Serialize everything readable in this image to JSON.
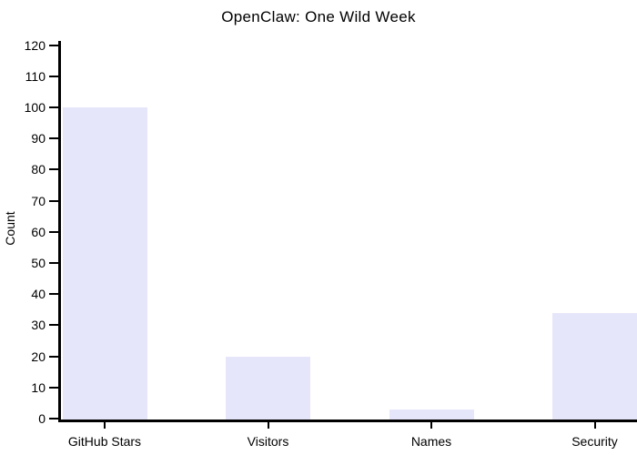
{
  "chart_data": {
    "type": "bar",
    "title": "OpenClaw: One Wild Week",
    "xlabel": "",
    "ylabel": "Count",
    "categories": [
      "GitHub Stars",
      "Visitors",
      "Names",
      "Security"
    ],
    "values": [
      100,
      20,
      3,
      34
    ],
    "ylim": [
      0,
      120
    ],
    "yticks": [
      0,
      10,
      20,
      30,
      40,
      50,
      60,
      70,
      80,
      90,
      100,
      110,
      120
    ],
    "grid": false,
    "legend": false,
    "colors": {
      "bar_fill": "#e6e6fa",
      "axis": "#000000",
      "text": "#000000",
      "background": "#ffffff"
    }
  }
}
